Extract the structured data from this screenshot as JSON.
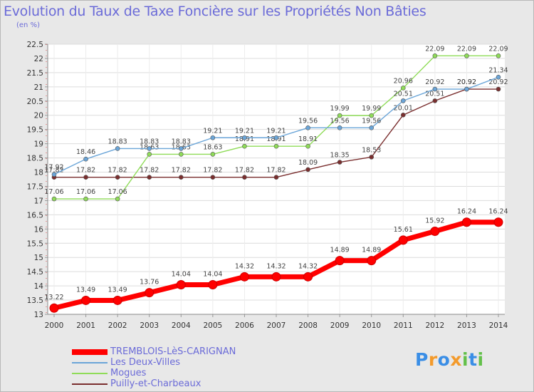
{
  "header": {
    "title": "Evolution du Taux de Taxe Foncière sur les Propriétés Non Bâties",
    "unit": "(en %)"
  },
  "logo": {
    "text": "Proxiti",
    "letters": [
      "P",
      "r",
      "o",
      "x",
      "i",
      "t",
      "i"
    ],
    "colors": [
      "#3a8ee6",
      "#f39a2b",
      "#3a8ee6",
      "#f39a2b",
      "#63c04a",
      "#3a8ee6",
      "#63c04a"
    ]
  },
  "chart_data": {
    "type": "line",
    "title": "Evolution du Taux de Taxe Foncière sur les Propriétés Non Bâties",
    "ylabel": "(en %)",
    "xlabel": "",
    "ylim": [
      13,
      22.5
    ],
    "yticks": [
      "13",
      "13.5",
      "14",
      "14.5",
      "15",
      "15.5",
      "16",
      "16.5",
      "17",
      "17.5",
      "18",
      "18.5",
      "19",
      "19.5",
      "20",
      "20.5",
      "21",
      "21.5",
      "22",
      "22.5"
    ],
    "categories": [
      "2000",
      "2001",
      "2002",
      "2003",
      "2004",
      "2005",
      "2006",
      "2007",
      "2008",
      "2009",
      "2010",
      "2011",
      "2012",
      "2013",
      "2014"
    ],
    "series": [
      {
        "name": "TREMBLOIS-LèS-CARIGNAN",
        "color": "#ff0000",
        "values": [
          13.22,
          13.49,
          13.49,
          13.76,
          14.04,
          14.04,
          14.32,
          14.32,
          14.32,
          14.89,
          14.89,
          15.61,
          15.92,
          16.24,
          16.24
        ],
        "labels": [
          "13.22",
          "13.49",
          "13.49",
          "13.76",
          "14.04",
          "14.04",
          "14.32",
          "14.32",
          "14.32",
          "14.89",
          "14.89",
          "15.61",
          "15.92",
          "16.24",
          "16.24"
        ]
      },
      {
        "name": "Les Deux-Villes",
        "color": "#6aa5d8",
        "values": [
          17.92,
          18.46,
          18.83,
          18.83,
          18.83,
          19.21,
          19.21,
          19.21,
          19.56,
          19.56,
          19.56,
          20.51,
          20.92,
          20.92,
          21.34
        ],
        "labels": [
          "17.92",
          "18.46",
          "18.83",
          "18.83",
          "18.83",
          "19.21",
          "19.21",
          "19.21",
          "19.56",
          "19.56",
          "19.56",
          "20.51",
          "20.92",
          "20.92",
          "21.34"
        ]
      },
      {
        "name": "Mogues",
        "color": "#8fdc58",
        "values": [
          17.06,
          17.06,
          17.06,
          18.63,
          18.63,
          18.63,
          18.91,
          18.91,
          18.91,
          19.99,
          19.99,
          20.96,
          22.09,
          22.09,
          22.09
        ],
        "labels": [
          "17.06",
          "17.06",
          "17.06",
          "18.63",
          "18.63",
          "18.63",
          "18.91",
          "18.91",
          "18.91",
          "19.99",
          "19.99",
          "20.96",
          "22.09",
          "22.09",
          "22.09"
        ]
      },
      {
        "name": "Puilly-et-Charbeaux",
        "color": "#7a2e2e",
        "values": [
          17.82,
          17.82,
          17.82,
          17.82,
          17.82,
          17.82,
          17.82,
          17.82,
          18.09,
          18.35,
          18.53,
          20.01,
          20.51,
          20.92,
          20.92
        ],
        "labels": [
          "17.82",
          "17.82",
          "17.82",
          "17.82",
          "17.82",
          "17.82",
          "17.82",
          "17.82",
          "18.09",
          "18.35",
          "18.53",
          "20.01",
          "20.51",
          "20.92",
          "20.92"
        ]
      }
    ],
    "legend_position": "bottom-left",
    "grid": true
  }
}
